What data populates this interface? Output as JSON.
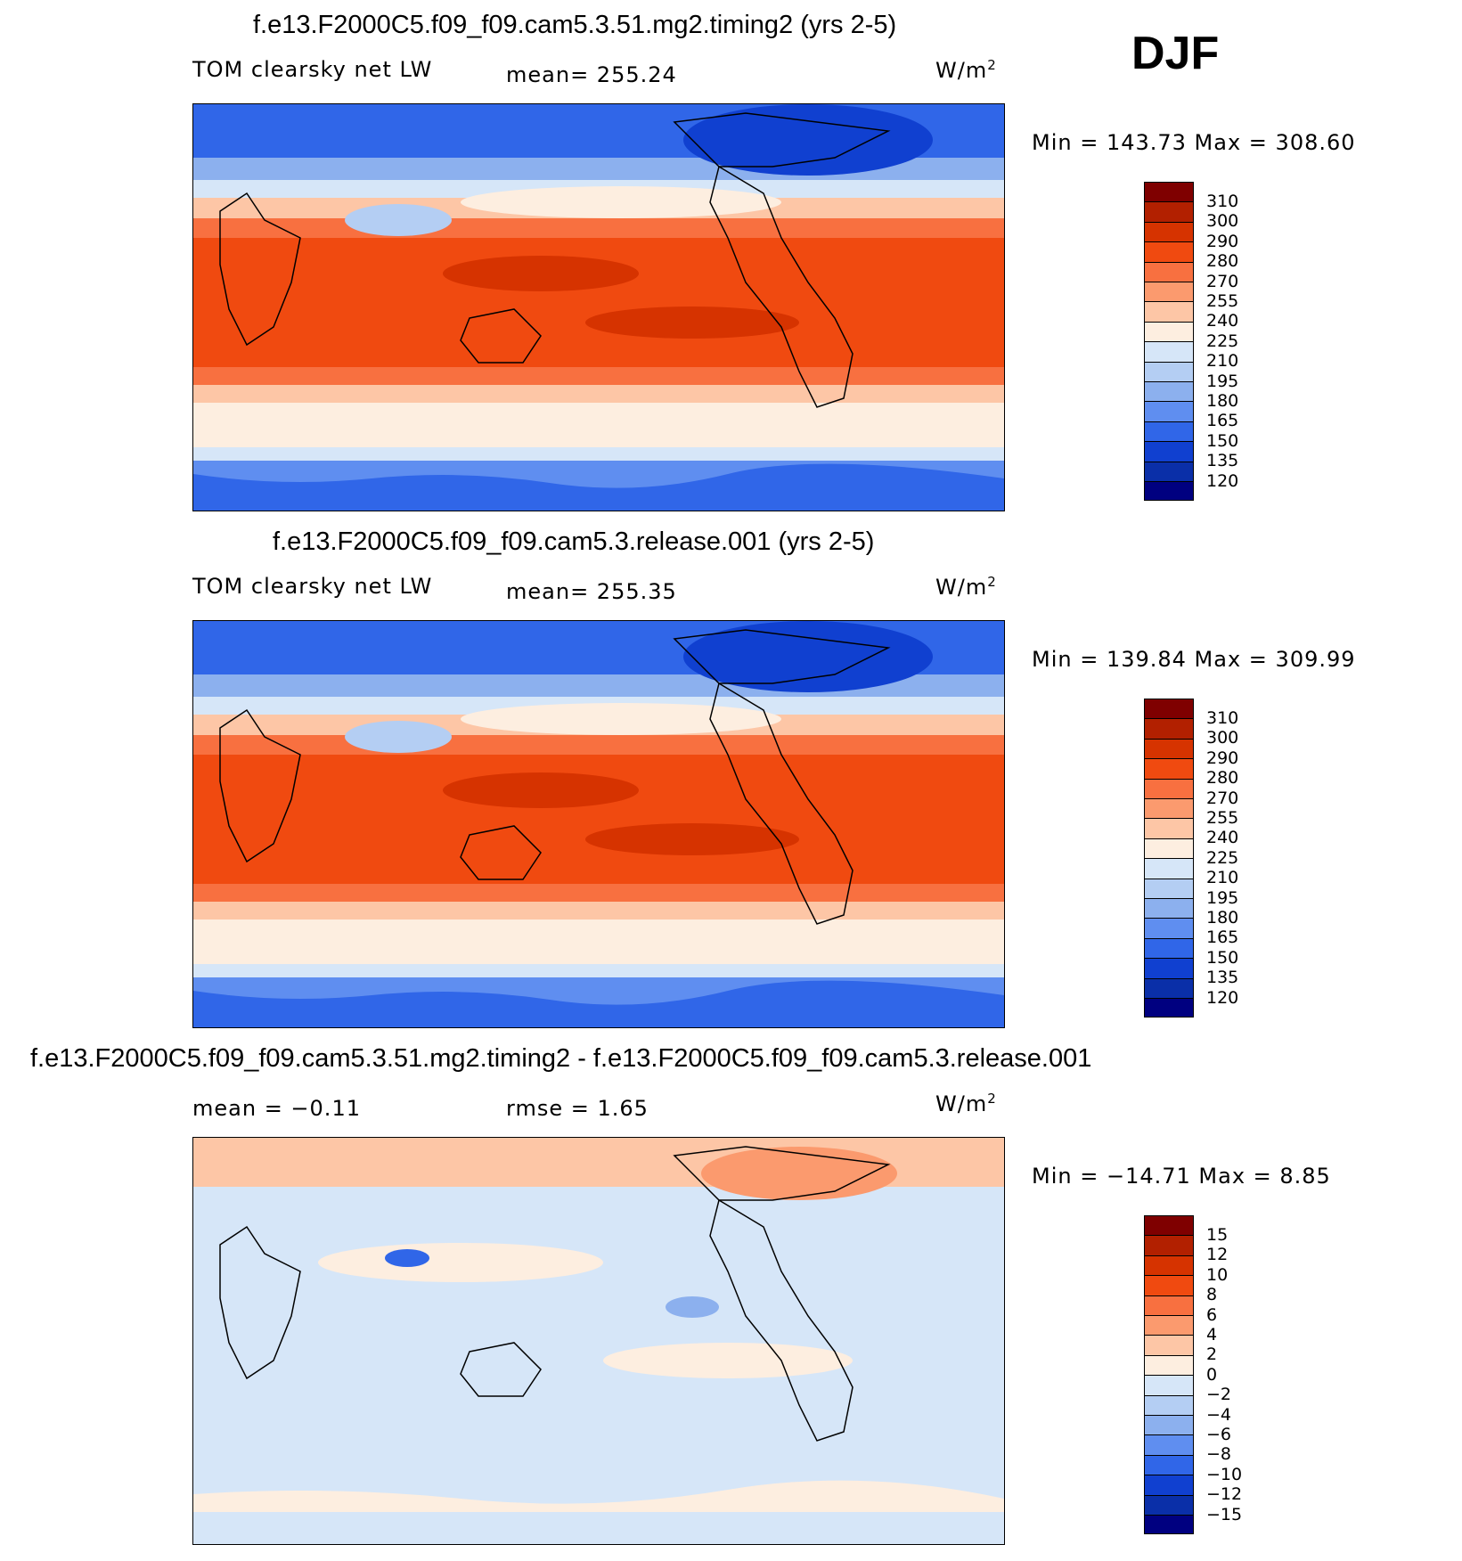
{
  "season_label": "DJF",
  "panels": [
    {
      "title": "f.e13.F2000C5.f09_f09.cam5.3.51.mg2.timing2 (yrs 2-5)",
      "left_label": "TOM clearsky net LW",
      "center_label": "mean= 255.24",
      "units_base": "W/m",
      "units_exp": "2",
      "min_max": "Min = 143.73 Max = 308.60",
      "colorbar": {
        "labels": [
          "310",
          "300",
          "290",
          "280",
          "270",
          "255",
          "240",
          "225",
          "210",
          "195",
          "180",
          "165",
          "150",
          "135",
          "120"
        ],
        "colors": [
          "#7f0000",
          "#b22000",
          "#d63300",
          "#f04a10",
          "#f87040",
          "#fb9a6e",
          "#fdc6a6",
          "#fdeee0",
          "#d6e6f8",
          "#b4cef3",
          "#8cb0ee",
          "#5f8ef0",
          "#3066e8",
          "#1040d0",
          "#0a2fa8",
          "#000080"
        ]
      }
    },
    {
      "title": "f.e13.F2000C5.f09_f09.cam5.3.release.001 (yrs 2-5)",
      "left_label": "TOM clearsky net LW",
      "center_label": "mean= 255.35",
      "units_base": "W/m",
      "units_exp": "2",
      "min_max": "Min = 139.84 Max = 309.99",
      "colorbar": {
        "labels": [
          "310",
          "300",
          "290",
          "280",
          "270",
          "255",
          "240",
          "225",
          "210",
          "195",
          "180",
          "165",
          "150",
          "135",
          "120"
        ],
        "colors": [
          "#7f0000",
          "#b22000",
          "#d63300",
          "#f04a10",
          "#f87040",
          "#fb9a6e",
          "#fdc6a6",
          "#fdeee0",
          "#d6e6f8",
          "#b4cef3",
          "#8cb0ee",
          "#5f8ef0",
          "#3066e8",
          "#1040d0",
          "#0a2fa8",
          "#000080"
        ]
      }
    },
    {
      "title": "f.e13.F2000C5.f09_f09.cam5.3.51.mg2.timing2 - f.e13.F2000C5.f09_f09.cam5.3.release.001",
      "left_label": "mean =   −0.11",
      "center_label": "rmse =    1.65",
      "units_base": "W/m",
      "units_exp": "2",
      "min_max": "Min = −14.71 Max =    8.85",
      "colorbar": {
        "labels": [
          "15",
          "12",
          "10",
          "8",
          "6",
          "4",
          "2",
          "0",
          "−2",
          "−4",
          "−6",
          "−8",
          "−10",
          "−12",
          "−15"
        ],
        "colors": [
          "#7f0000",
          "#b22000",
          "#d63300",
          "#f04a10",
          "#f87040",
          "#fb9a6e",
          "#fdc6a6",
          "#fdeee0",
          "#d6e6f8",
          "#b4cef3",
          "#8cb0ee",
          "#5f8ef0",
          "#3066e8",
          "#1040d0",
          "#0a2fa8",
          "#000080"
        ]
      }
    }
  ]
}
